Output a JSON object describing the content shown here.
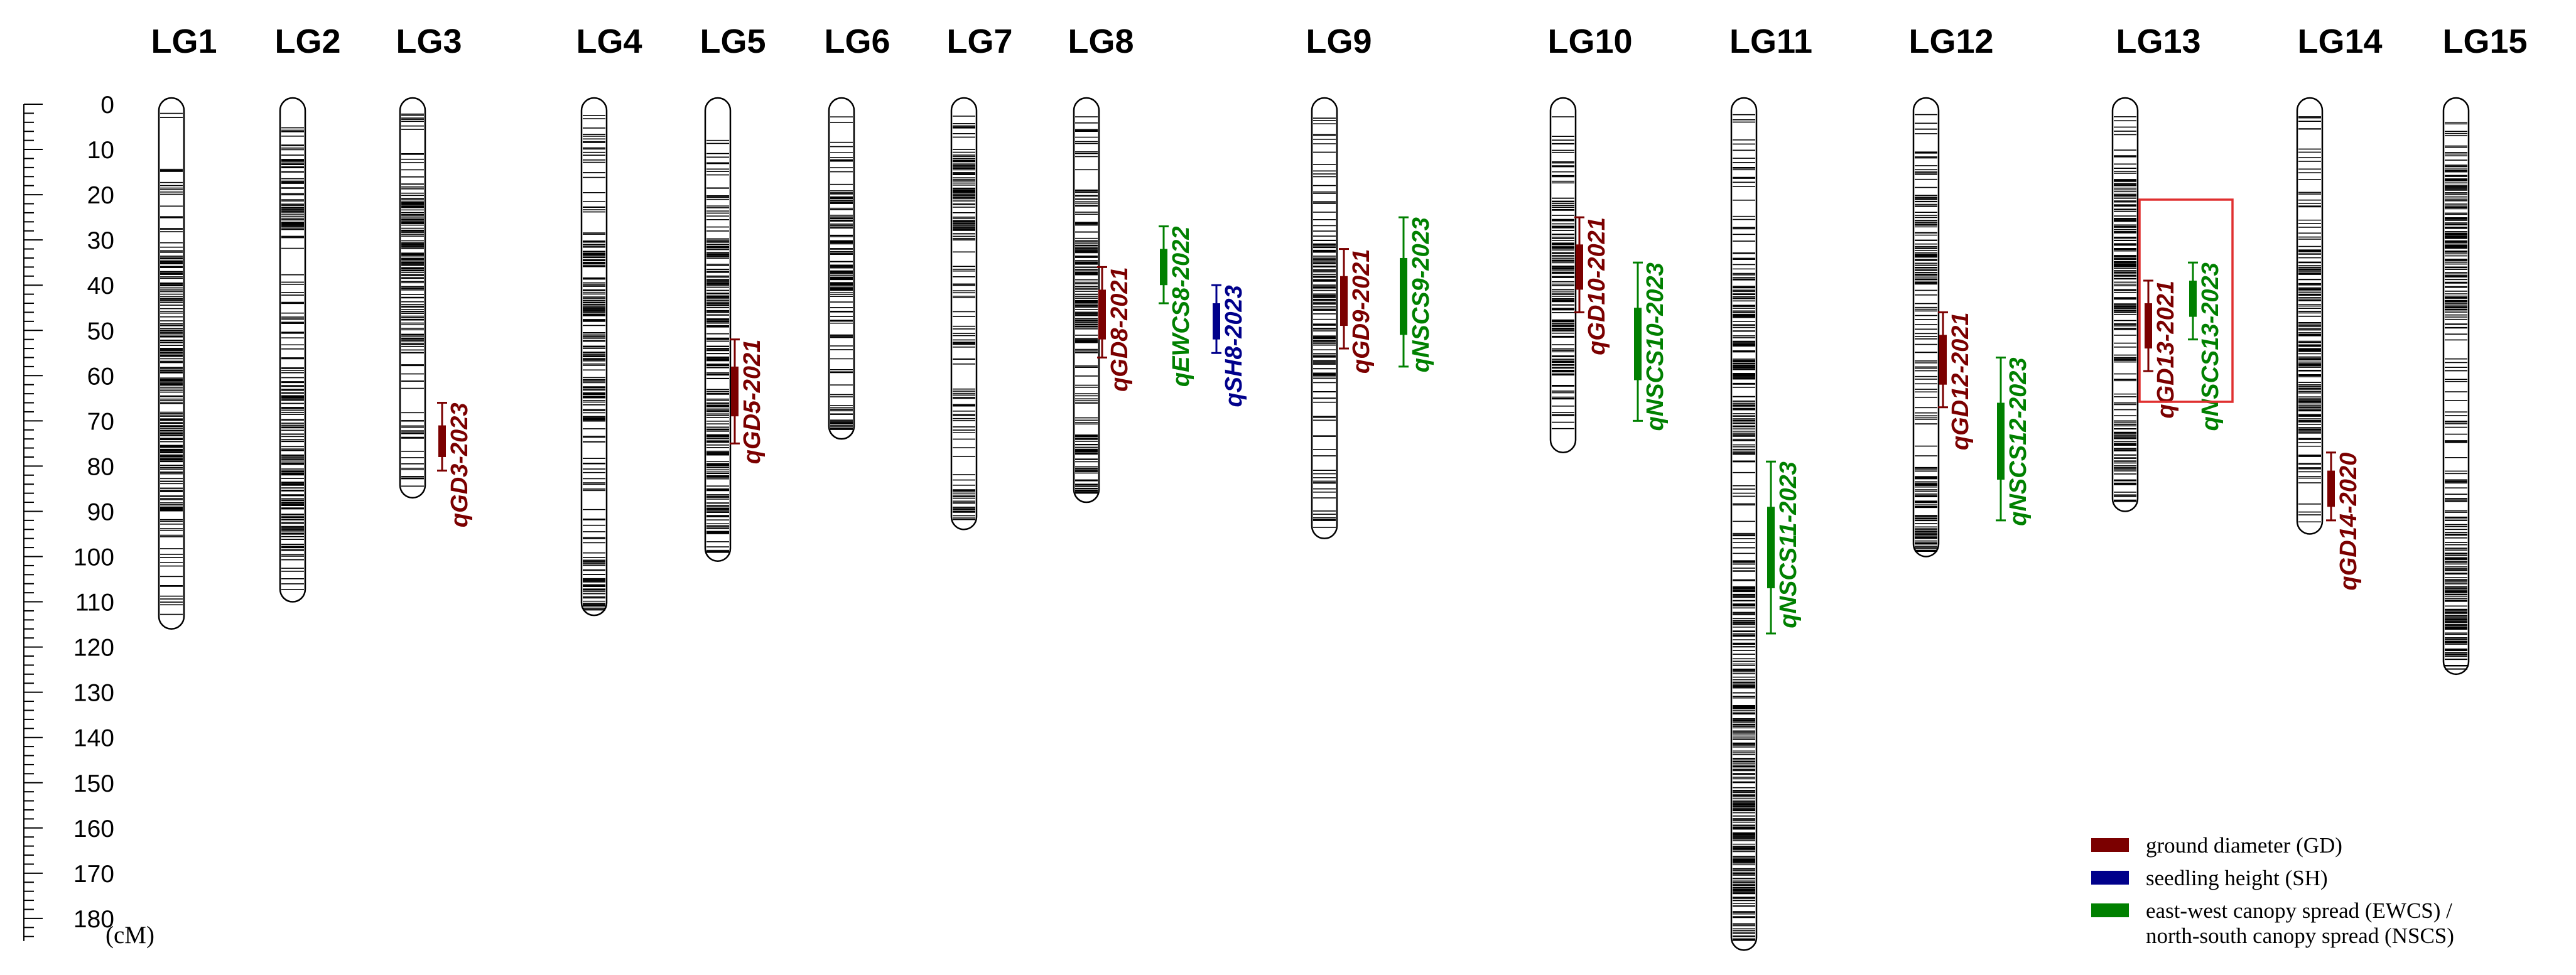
{
  "chart_data": {
    "type": "linkage-map",
    "axis": {
      "ticks": [
        0,
        10,
        20,
        30,
        40,
        50,
        60,
        70,
        80,
        90,
        100,
        110,
        120,
        130,
        140,
        150,
        160,
        170,
        180
      ],
      "unit": "(cM)",
      "range": [
        0,
        185
      ]
    },
    "colors": {
      "GD": "#7b0000",
      "SH": "#00008b",
      "NSCS": "#008000",
      "box": "#e03030"
    },
    "groups": [
      {
        "name": "LG1",
        "length": 116,
        "markers": [
          [
            0,
            4
          ],
          [
            14,
            15
          ],
          [
            16,
            32
          ],
          [
            32,
            90
          ],
          [
            90,
            113
          ]
        ]
      },
      {
        "name": "LG2",
        "length": 110,
        "markers": [
          [
            2,
            12
          ],
          [
            12,
            30
          ],
          [
            30,
            62
          ],
          [
            62,
            100
          ],
          [
            100,
            108
          ]
        ]
      },
      {
        "name": "LG3",
        "length": 87,
        "markers": [
          [
            2,
            15
          ],
          [
            15,
            55
          ],
          [
            55,
            85
          ]
        ]
      },
      {
        "name": "LG4",
        "length": 113,
        "markers": [
          [
            2,
            30
          ],
          [
            30,
            70
          ],
          [
            70,
            100
          ],
          [
            100,
            112
          ]
        ]
      },
      {
        "name": "LG5",
        "length": 101,
        "markers": [
          [
            2,
            30
          ],
          [
            30,
            95
          ],
          [
            95,
            100
          ]
        ]
      },
      {
        "name": "LG6",
        "length": 74,
        "markers": [
          [
            2,
            20
          ],
          [
            20,
            45
          ],
          [
            45,
            67
          ],
          [
            67,
            72
          ]
        ]
      },
      {
        "name": "LG7",
        "length": 94,
        "markers": [
          [
            2,
            10
          ],
          [
            10,
            30
          ],
          [
            30,
            85
          ],
          [
            85,
            92
          ]
        ]
      },
      {
        "name": "LG8",
        "length": 88,
        "markers": [
          [
            2,
            20
          ],
          [
            20,
            55
          ],
          [
            55,
            72
          ],
          [
            72,
            86
          ]
        ]
      },
      {
        "name": "LG9",
        "length": 96,
        "markers": [
          [
            2,
            30
          ],
          [
            30,
            60
          ],
          [
            60,
            95
          ]
        ]
      },
      {
        "name": "LG10",
        "length": 77,
        "markers": [
          [
            2,
            20
          ],
          [
            20,
            60
          ],
          [
            60,
            75
          ]
        ]
      },
      {
        "name": "LG11",
        "length": 187,
        "markers": [
          [
            2,
            40
          ],
          [
            40,
            80
          ],
          [
            80,
            105
          ],
          [
            105,
            185
          ]
        ]
      },
      {
        "name": "LG12",
        "length": 100,
        "markers": [
          [
            2,
            20
          ],
          [
            20,
            40
          ],
          [
            40,
            80
          ],
          [
            80,
            99
          ]
        ]
      },
      {
        "name": "LG13",
        "length": 90,
        "markers": [
          [
            2,
            12
          ],
          [
            12,
            50
          ],
          [
            50,
            70
          ],
          [
            70,
            88
          ]
        ]
      },
      {
        "name": "LG14",
        "length": 95,
        "markers": [
          [
            2,
            30
          ],
          [
            30,
            75
          ],
          [
            75,
            93
          ]
        ]
      },
      {
        "name": "LG15",
        "length": 126,
        "markers": [
          [
            2,
            10
          ],
          [
            10,
            50
          ],
          [
            50,
            90
          ],
          [
            90,
            125
          ]
        ]
      }
    ],
    "qtls": [
      {
        "label": "qGD3-2023",
        "group": "LG3",
        "trait": "GD",
        "start": 71,
        "end": 78,
        "ci_start": 66,
        "ci_end": 81
      },
      {
        "label": "qGD5-2021",
        "group": "LG5",
        "trait": "GD",
        "start": 58,
        "end": 69,
        "ci_start": 52,
        "ci_end": 75
      },
      {
        "label": "qGD8-2021",
        "group": "LG8",
        "trait": "GD",
        "start": 41,
        "end": 52,
        "ci_start": 36,
        "ci_end": 56
      },
      {
        "label": "qEWCS8-2022",
        "group": "LG8",
        "trait": "NSCS",
        "start": 32,
        "end": 40,
        "ci_start": 27,
        "ci_end": 44
      },
      {
        "label": "qSH8-2023",
        "group": "LG8",
        "trait": "SH",
        "start": 44,
        "end": 52,
        "ci_start": 40,
        "ci_end": 55
      },
      {
        "label": "qGD9-2021",
        "group": "LG9",
        "trait": "GD",
        "start": 38,
        "end": 49,
        "ci_start": 32,
        "ci_end": 54
      },
      {
        "label": "qNSCS9-2023",
        "group": "LG9",
        "trait": "NSCS",
        "start": 34,
        "end": 51,
        "ci_start": 25,
        "ci_end": 58
      },
      {
        "label": "qGD10-2021",
        "group": "LG10",
        "trait": "GD",
        "start": 31,
        "end": 41,
        "ci_start": 25,
        "ci_end": 46
      },
      {
        "label": "qNSCS10-2023",
        "group": "LG10",
        "trait": "NSCS",
        "start": 45,
        "end": 61,
        "ci_start": 35,
        "ci_end": 70
      },
      {
        "label": "qNSCS11-2023",
        "group": "LG11",
        "trait": "NSCS",
        "start": 89,
        "end": 107,
        "ci_start": 79,
        "ci_end": 117
      },
      {
        "label": "qGD12-2021",
        "group": "LG12",
        "trait": "GD",
        "start": 51,
        "end": 62,
        "ci_start": 46,
        "ci_end": 67
      },
      {
        "label": "qNSCS12-2023",
        "group": "LG12",
        "trait": "NSCS",
        "start": 66,
        "end": 83,
        "ci_start": 56,
        "ci_end": 92
      },
      {
        "label": "qGD13-2021",
        "group": "LG13",
        "trait": "GD",
        "start": 44,
        "end": 54,
        "ci_start": 39,
        "ci_end": 59
      },
      {
        "label": "qNSCS13-2023",
        "group": "LG13",
        "trait": "NSCS",
        "start": 39,
        "end": 47,
        "ci_start": 35,
        "ci_end": 52
      },
      {
        "label": "qGD14-2020",
        "group": "LG14",
        "trait": "GD",
        "start": 81,
        "end": 89,
        "ci_start": 77,
        "ci_end": 92
      }
    ],
    "legend": [
      {
        "trait": "GD",
        "text": "ground diameter (GD)"
      },
      {
        "trait": "SH",
        "text": "seedling height (SH)"
      },
      {
        "trait": "NSCS",
        "text": "east-west canopy spread (EWCS) /",
        "text2": "north-south canopy spread (NSCS)"
      }
    ]
  }
}
